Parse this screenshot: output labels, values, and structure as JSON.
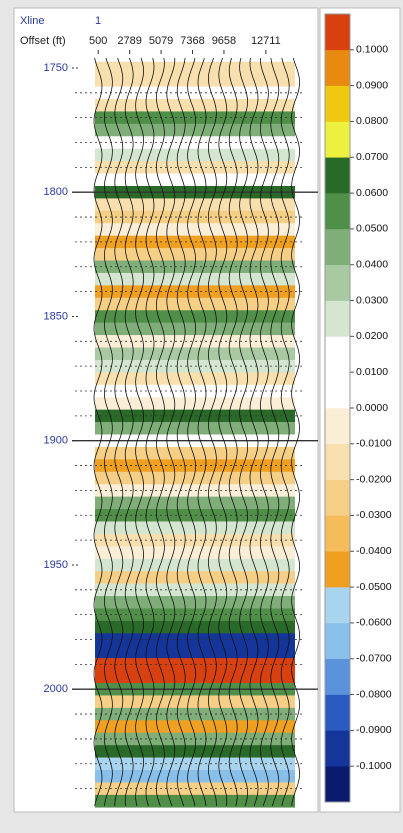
{
  "chart_data": {
    "type": "seismic",
    "x_header_label": "Xline",
    "x_header_value": "1",
    "xlabel": "Offset (ft)",
    "xlim": [
      -100,
      15200
    ],
    "xticks": [
      500,
      2789,
      5079,
      7368,
      9658,
      12711
    ],
    "ylim": [
      1746,
      2048
    ],
    "yticks": [
      1750,
      1800,
      1850,
      1900,
      1950,
      2000
    ],
    "major_lines": [
      1800,
      1900,
      2000
    ],
    "minor_yticks": [
      1760,
      1770,
      1780,
      1790,
      1810,
      1820,
      1830,
      1840,
      1860,
      1870,
      1880,
      1890,
      1910,
      1920,
      1930,
      1940,
      1960,
      1970,
      1980,
      1990,
      2010,
      2020,
      2030,
      2040
    ],
    "times": [
      1750,
      1755,
      1760,
      1765,
      1770,
      1775,
      1780,
      1785,
      1790,
      1795,
      1800,
      1805,
      1810,
      1815,
      1820,
      1825,
      1830,
      1835,
      1840,
      1845,
      1850,
      1855,
      1860,
      1865,
      1870,
      1875,
      1880,
      1885,
      1890,
      1895,
      1900,
      1905,
      1910,
      1915,
      1920,
      1925,
      1930,
      1935,
      1940,
      1945,
      1950,
      1955,
      1960,
      1965,
      1970,
      1975,
      1980,
      1985,
      1990,
      1995,
      2000,
      2005,
      2010,
      2015,
      2020,
      2025,
      2030,
      2035,
      2040,
      2045
    ],
    "values": [
      -0.02,
      -0.02,
      0.0,
      -0.015,
      0.05,
      0.045,
      0.01,
      0.02,
      -0.02,
      0.015,
      0.065,
      -0.02,
      -0.03,
      -0.01,
      -0.045,
      -0.03,
      0.04,
      0.02,
      -0.045,
      -0.025,
      0.055,
      0.04,
      -0.01,
      0.035,
      0.02,
      -0.02,
      0.015,
      -0.01,
      0.065,
      0.045,
      0.0,
      -0.03,
      -0.05,
      -0.03,
      -0.01,
      0.045,
      0.05,
      0.02,
      -0.02,
      -0.01,
      0.02,
      -0.03,
      0.025,
      0.04,
      0.05,
      0.065,
      -0.1,
      -0.095,
      0.1,
      0.105,
      0.05,
      -0.03,
      0.04,
      -0.05,
      0.045,
      0.065,
      -0.055,
      -0.07,
      -0.03,
      0.05
    ],
    "colorbar": {
      "levels": [
        -0.11,
        -0.1,
        -0.09,
        -0.08,
        -0.07,
        -0.06,
        -0.05,
        -0.04,
        -0.03,
        -0.02,
        -0.01,
        0.0,
        0.01,
        0.02,
        0.03,
        0.04,
        0.05,
        0.06,
        0.07,
        0.08,
        0.09,
        0.1,
        0.11
      ],
      "colors": [
        "#0a1a6e",
        "#14359a",
        "#2a5cc0",
        "#5a92dc",
        "#88c0ea",
        "#a8d4ee",
        "#f0a020",
        "#f4bc5a",
        "#f6cf86",
        "#f8dfae",
        "#fbeed6",
        "#ffffff",
        "#ffffff",
        "#d4e6d0",
        "#a8c9a2",
        "#7fae78",
        "#4f8f48",
        "#2a6a28",
        "#eef040",
        "#f0c810",
        "#e88a10",
        "#d84010",
        "#b00808"
      ],
      "ticks": [
        {
          "value": -0.1,
          "label": "-0.1000"
        },
        {
          "value": -0.09,
          "label": "-0.0900"
        },
        {
          "value": -0.08,
          "label": "-0.0800"
        },
        {
          "value": -0.07,
          "label": "-0.0700"
        },
        {
          "value": -0.06,
          "label": "-0.0600"
        },
        {
          "value": -0.05,
          "label": "-0.0500"
        },
        {
          "value": -0.04,
          "label": "-0.0400"
        },
        {
          "value": -0.03,
          "label": "-0.0300"
        },
        {
          "value": -0.02,
          "label": "-0.0200"
        },
        {
          "value": -0.01,
          "label": "-0.0100"
        },
        {
          "value": 0.0,
          "label": "0.0000"
        },
        {
          "value": 0.01,
          "label": "0.0100"
        },
        {
          "value": 0.02,
          "label": "0.0200"
        },
        {
          "value": 0.03,
          "label": "0.0300"
        },
        {
          "value": 0.04,
          "label": "0.0400"
        },
        {
          "value": 0.05,
          "label": "0.0500"
        },
        {
          "value": 0.06,
          "label": "0.0600"
        },
        {
          "value": 0.07,
          "label": "0.0700"
        },
        {
          "value": 0.08,
          "label": "0.0800"
        },
        {
          "value": 0.09,
          "label": "0.0900"
        },
        {
          "value": 0.1,
          "label": "0.1000"
        }
      ]
    }
  }
}
